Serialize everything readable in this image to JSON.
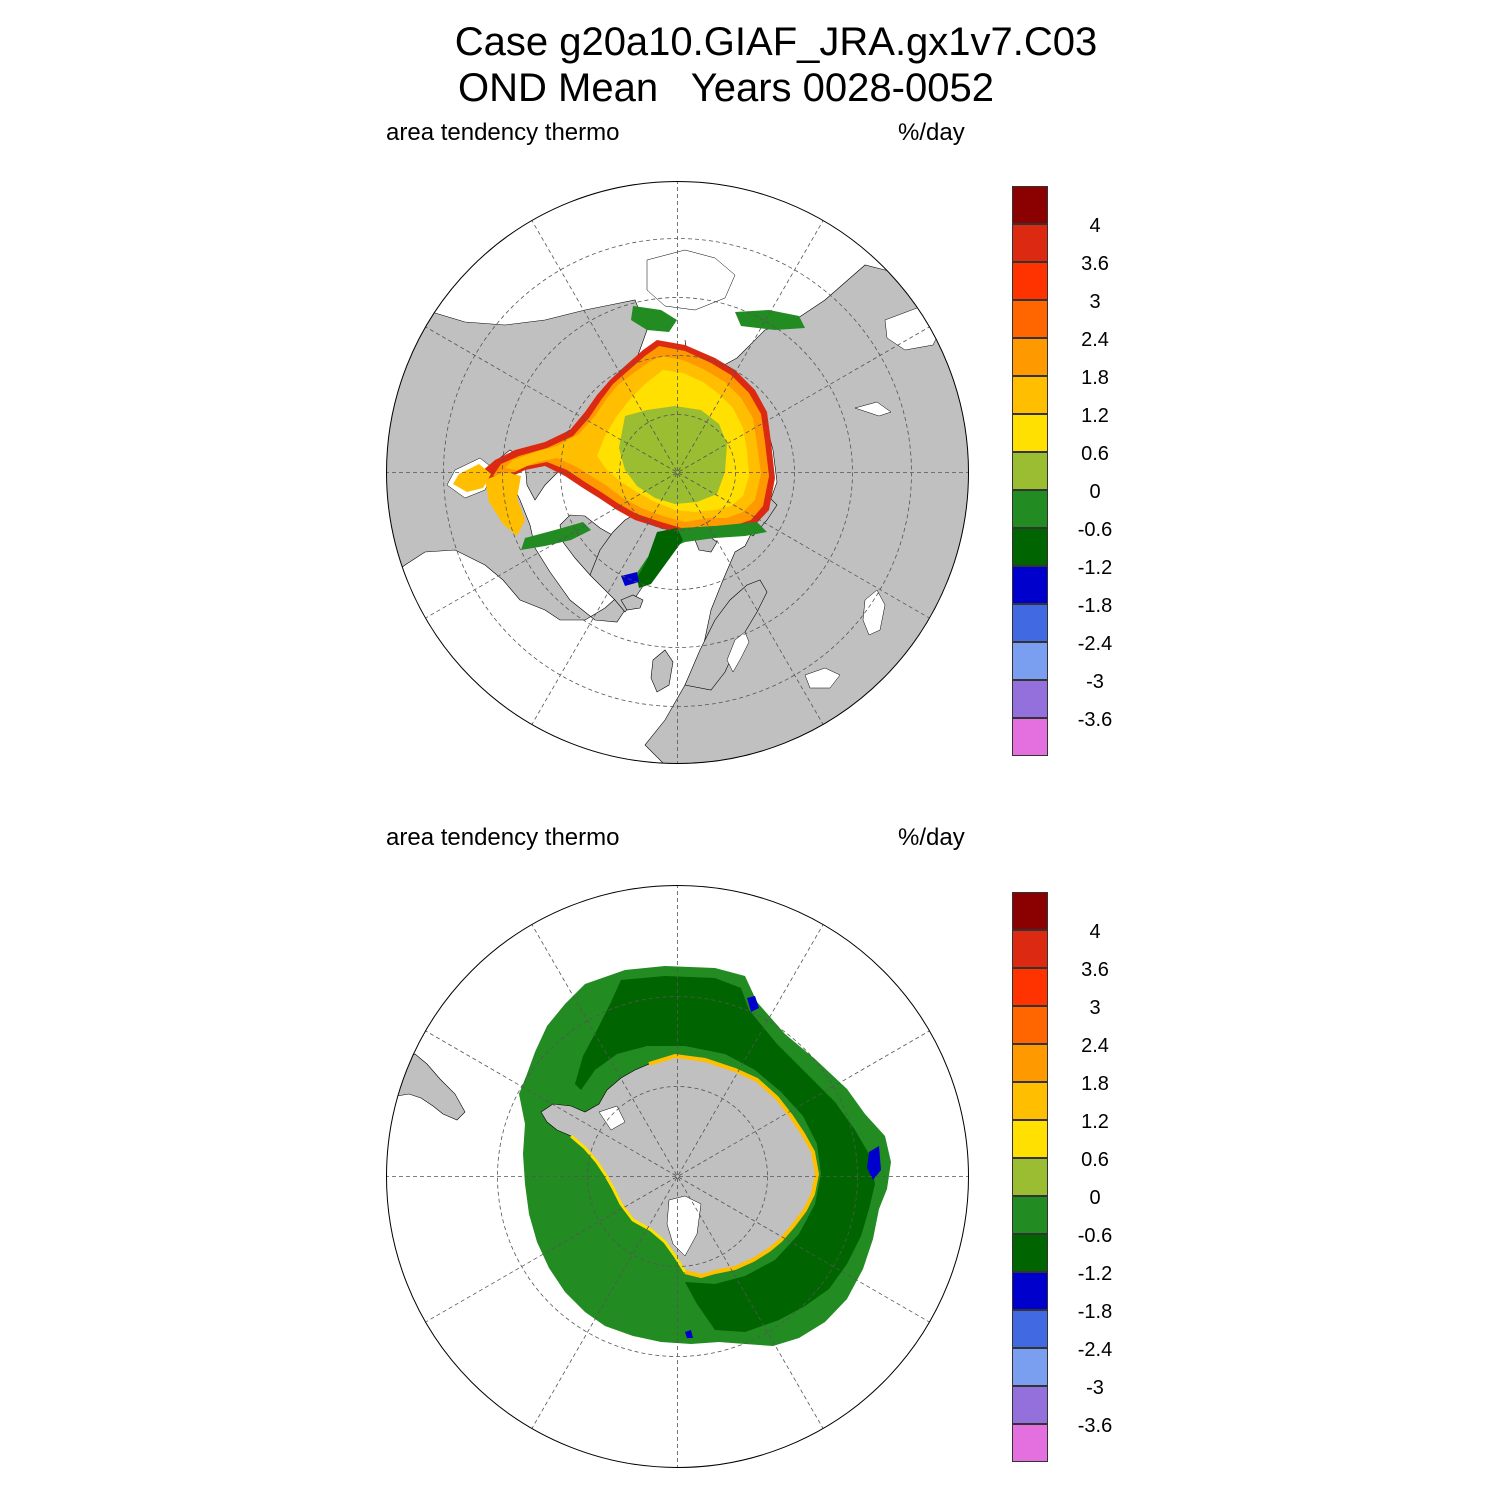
{
  "title": {
    "line1": "Case g20a10.GIAF_JRA.gx1v7.C03",
    "line2": "OND Mean   Years 0028-0052"
  },
  "panels": [
    {
      "id": "north",
      "hemisphere": "Northern Hemisphere",
      "left_label": "area tendency thermo",
      "right_label": "%/day"
    },
    {
      "id": "south",
      "hemisphere": "Southern Hemisphere",
      "left_label": "area tendency thermo",
      "right_label": "%/day"
    }
  ],
  "colorbar": {
    "labels": [
      "4",
      "3.6",
      "3",
      "2.4",
      "1.8",
      "1.2",
      "0.6",
      "0",
      "-0.6",
      "-1.2",
      "-1.8",
      "-2.4",
      "-3",
      "-3.6"
    ],
    "colors": [
      "#8B0000",
      "#DC2A12",
      "#FF3300",
      "#FF6600",
      "#FF9900",
      "#FFBF00",
      "#FFE000",
      "#9ABD32",
      "#228B22",
      "#006400",
      "#0000CD",
      "#4169E1",
      "#7B9FF0",
      "#9370DB",
      "#E370DE"
    ]
  },
  "colors": {
    "land": "#C0C0C0",
    "ocean": "#FFFFFF"
  }
}
